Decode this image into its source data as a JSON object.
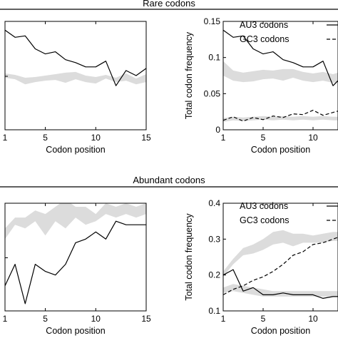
{
  "figure": {
    "section_titles": [
      "Rare codons",
      "Abundant codons"
    ]
  },
  "chart_data": [
    {
      "type": "line",
      "section": "Rare codons",
      "xlabel": "Codon position",
      "ylabel": "",
      "xlim": [
        1,
        15
      ],
      "ylim": [
        0,
        0.15
      ],
      "xticks": [
        1,
        5,
        10,
        15
      ],
      "yticks": [],
      "legend": [],
      "series": [
        {
          "name": "",
          "style": "solid",
          "color": "#000000",
          "x": [
            1,
            2,
            3,
            4,
            5,
            6,
            7,
            8,
            9,
            10,
            11,
            12,
            13,
            14,
            15
          ],
          "y": [
            0.138,
            0.128,
            0.13,
            0.112,
            0.105,
            0.108,
            0.097,
            0.093,
            0.087,
            0.087,
            0.095,
            0.061,
            0.082,
            0.075,
            0.085
          ]
        }
      ],
      "bands": [
        {
          "color": "#dcdcdc",
          "x": [
            1,
            2,
            3,
            4,
            5,
            6,
            7,
            8,
            9,
            10,
            11,
            12,
            13,
            14,
            15
          ],
          "lower": [
            0.072,
            0.07,
            0.063,
            0.066,
            0.068,
            0.069,
            0.065,
            0.07,
            0.066,
            0.064,
            0.071,
            0.066,
            0.068,
            0.063,
            0.066
          ],
          "upper": [
            0.078,
            0.076,
            0.072,
            0.073,
            0.075,
            0.077,
            0.079,
            0.08,
            0.075,
            0.073,
            0.076,
            0.072,
            0.078,
            0.071,
            0.077
          ]
        }
      ]
    },
    {
      "type": "line",
      "section": "Rare codons",
      "xlabel": "Codon position",
      "ylabel": "Total codon frequency",
      "xlim": [
        1,
        12.5
      ],
      "ylim": [
        0,
        0.15
      ],
      "xticks": [
        1,
        5,
        10
      ],
      "yticks": [
        0,
        0.05,
        0.1,
        0.15
      ],
      "ytick_labels": [
        "0",
        "0.05",
        "0.1",
        "0.15"
      ],
      "legend": [
        {
          "label": "AU3 codons",
          "style": "solid"
        },
        {
          "label": "GC3 codons",
          "style": "dashed"
        }
      ],
      "series": [
        {
          "name": "AU3 codons",
          "style": "solid",
          "color": "#000000",
          "x": [
            1,
            2,
            3,
            4,
            5,
            6,
            7,
            8,
            9,
            10,
            11,
            12,
            12.5
          ],
          "y": [
            0.138,
            0.128,
            0.13,
            0.112,
            0.105,
            0.108,
            0.097,
            0.093,
            0.087,
            0.087,
            0.095,
            0.061,
            0.068
          ]
        },
        {
          "name": "GC3 codons",
          "style": "dashed",
          "color": "#000000",
          "x": [
            1,
            2,
            3,
            4,
            5,
            6,
            7,
            8,
            9,
            10,
            11,
            12,
            12.5
          ],
          "y": [
            0.013,
            0.018,
            0.012,
            0.017,
            0.014,
            0.019,
            0.017,
            0.022,
            0.021,
            0.027,
            0.02,
            0.024,
            0.026
          ]
        }
      ],
      "bands": [
        {
          "color": "#dcdcdc",
          "x": [
            1,
            2,
            3,
            4,
            5,
            6,
            7,
            8,
            9,
            10,
            11,
            12,
            12.5
          ],
          "lower": [
            0.075,
            0.068,
            0.066,
            0.067,
            0.07,
            0.071,
            0.068,
            0.072,
            0.068,
            0.066,
            0.068,
            0.065,
            0.066
          ],
          "upper": [
            0.095,
            0.082,
            0.079,
            0.081,
            0.083,
            0.082,
            0.084,
            0.084,
            0.08,
            0.078,
            0.08,
            0.077,
            0.079
          ]
        },
        {
          "color": "#dcdcdc",
          "x": [
            1,
            2,
            3,
            4,
            5,
            6,
            7,
            8,
            9,
            10,
            11,
            12,
            12.5
          ],
          "lower": [
            0.011,
            0.013,
            0.012,
            0.013,
            0.014,
            0.013,
            0.014,
            0.013,
            0.014,
            0.013,
            0.014,
            0.013,
            0.013
          ],
          "upper": [
            0.016,
            0.018,
            0.017,
            0.018,
            0.019,
            0.018,
            0.019,
            0.018,
            0.019,
            0.018,
            0.019,
            0.018,
            0.018
          ]
        }
      ]
    },
    {
      "type": "line",
      "section": "Abundant codons",
      "xlabel": "Codon position",
      "ylabel": "",
      "xlim": [
        1,
        15
      ],
      "ylim": [
        0.1,
        0.4
      ],
      "xticks": [
        1,
        5,
        10,
        15
      ],
      "yticks": [],
      "legend": [],
      "series": [
        {
          "name": "",
          "style": "solid",
          "color": "#000000",
          "x": [
            1,
            2,
            3,
            4,
            5,
            6,
            7,
            8,
            9,
            10,
            11,
            12,
            13,
            14,
            15
          ],
          "y": [
            0.17,
            0.23,
            0.12,
            0.23,
            0.21,
            0.2,
            0.23,
            0.29,
            0.3,
            0.32,
            0.3,
            0.35,
            0.34,
            0.34,
            0.34
          ]
        }
      ],
      "bands": [
        {
          "color": "#dcdcdc",
          "x": [
            1,
            2,
            3,
            4,
            5,
            6,
            7,
            8,
            9,
            10,
            11,
            12,
            13,
            14,
            15
          ],
          "lower": [
            0.3,
            0.34,
            0.33,
            0.35,
            0.31,
            0.35,
            0.33,
            0.36,
            0.34,
            0.35,
            0.37,
            0.36,
            0.37,
            0.36,
            0.37
          ],
          "upper": [
            0.33,
            0.36,
            0.36,
            0.38,
            0.37,
            0.39,
            0.41,
            0.39,
            0.39,
            0.37,
            0.4,
            0.39,
            0.4,
            0.39,
            0.4
          ]
        }
      ]
    },
    {
      "type": "line",
      "section": "Abundant codons",
      "xlabel": "Codon position",
      "ylabel": "Total codon frequency",
      "xlim": [
        1,
        12.5
      ],
      "ylim": [
        0.1,
        0.4
      ],
      "xticks": [
        1,
        5,
        10
      ],
      "yticks": [
        0.1,
        0.2,
        0.3,
        0.4
      ],
      "ytick_labels": [
        "0.1",
        "0.2",
        "0.3",
        "0.4"
      ],
      "legend": [
        {
          "label": "AU3 codons",
          "style": "solid"
        },
        {
          "label": "GC3 codons",
          "style": "dashed"
        }
      ],
      "series": [
        {
          "name": "AU3 codons",
          "style": "solid",
          "color": "#000000",
          "x": [
            1,
            2,
            3,
            4,
            5,
            6,
            7,
            8,
            9,
            10,
            11,
            12,
            12.5
          ],
          "y": [
            0.2,
            0.215,
            0.155,
            0.165,
            0.145,
            0.145,
            0.15,
            0.145,
            0.145,
            0.145,
            0.135,
            0.14,
            0.14
          ]
        },
        {
          "name": "GC3 codons",
          "style": "dashed",
          "color": "#000000",
          "x": [
            1,
            2,
            3,
            4,
            5,
            6,
            7,
            8,
            9,
            10,
            11,
            12,
            12.5
          ],
          "y": [
            0.145,
            0.16,
            0.17,
            0.185,
            0.195,
            0.21,
            0.23,
            0.255,
            0.265,
            0.285,
            0.29,
            0.3,
            0.305
          ]
        }
      ],
      "bands": [
        {
          "color": "#dcdcdc",
          "x": [
            1,
            2,
            3,
            4,
            5,
            6,
            7,
            8,
            9,
            10,
            11,
            12,
            12.5
          ],
          "lower": [
            0.195,
            0.23,
            0.255,
            0.26,
            0.27,
            0.285,
            0.29,
            0.28,
            0.29,
            0.29,
            0.29,
            0.295,
            0.295
          ],
          "upper": [
            0.21,
            0.245,
            0.275,
            0.285,
            0.3,
            0.32,
            0.325,
            0.315,
            0.315,
            0.31,
            0.315,
            0.32,
            0.32
          ]
        },
        {
          "color": "#dcdcdc",
          "x": [
            1,
            2,
            3,
            4,
            5,
            6,
            7,
            8,
            9,
            10,
            11,
            12,
            12.5
          ],
          "lower": [
            0.15,
            0.155,
            0.15,
            0.145,
            0.14,
            0.14,
            0.14,
            0.14,
            0.14,
            0.14,
            0.14,
            0.14,
            0.14
          ],
          "upper": [
            0.165,
            0.175,
            0.17,
            0.165,
            0.16,
            0.155,
            0.155,
            0.155,
            0.155,
            0.155,
            0.155,
            0.155,
            0.155
          ]
        }
      ]
    }
  ]
}
